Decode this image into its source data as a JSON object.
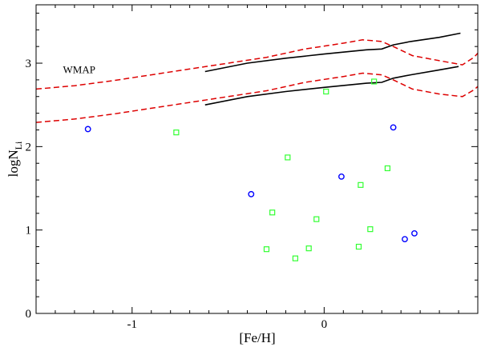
{
  "chart_data": {
    "type": "scatter",
    "title": "",
    "xlabel": "[Fe/H]",
    "ylabel": "logN",
    "ylabel_subscript": "Li",
    "xlim": [
      -1.5,
      0.8
    ],
    "ylim": [
      0,
      3.7
    ],
    "xticks": [
      -1,
      0
    ],
    "xtick_labels": [
      "-1",
      "0"
    ],
    "yticks": [
      0,
      1,
      2,
      3
    ],
    "ytick_labels": [
      "0",
      "1",
      "2",
      "3"
    ],
    "grid": false,
    "annotations": [
      {
        "text": "WMAP",
        "x": -1.36,
        "y": 2.88
      }
    ],
    "series": [
      {
        "name": "circles",
        "marker": "circle",
        "color": "#0000ff",
        "points": [
          [
            -1.23,
            2.21
          ],
          [
            -0.38,
            1.43
          ],
          [
            0.09,
            1.64
          ],
          [
            0.36,
            2.23
          ],
          [
            0.42,
            0.89
          ],
          [
            0.47,
            0.96
          ]
        ]
      },
      {
        "name": "squares",
        "marker": "square",
        "color": "#33ff33",
        "points": [
          [
            -0.77,
            2.17
          ],
          [
            -0.19,
            1.87
          ],
          [
            -0.27,
            1.21
          ],
          [
            -0.3,
            0.77
          ],
          [
            -0.15,
            0.66
          ],
          [
            -0.08,
            0.78
          ],
          [
            -0.04,
            1.13
          ],
          [
            0.01,
            2.66
          ],
          [
            0.18,
            0.8
          ],
          [
            0.19,
            1.54
          ],
          [
            0.24,
            1.01
          ],
          [
            0.26,
            2.78
          ],
          [
            0.33,
            1.74
          ]
        ]
      },
      {
        "name": "upper-black",
        "style": "solid",
        "color": "#000000",
        "points": [
          [
            -0.62,
            2.9
          ],
          [
            -0.4,
            3.0
          ],
          [
            -0.2,
            3.06
          ],
          [
            0.0,
            3.11
          ],
          [
            0.22,
            3.16
          ],
          [
            0.3,
            3.17
          ],
          [
            0.36,
            3.22
          ],
          [
            0.45,
            3.26
          ],
          [
            0.6,
            3.31
          ],
          [
            0.71,
            3.36
          ]
        ]
      },
      {
        "name": "lower-black",
        "style": "solid",
        "color": "#000000",
        "points": [
          [
            -0.62,
            2.5
          ],
          [
            -0.4,
            2.6
          ],
          [
            -0.2,
            2.66
          ],
          [
            0.0,
            2.71
          ],
          [
            0.22,
            2.76
          ],
          [
            0.3,
            2.77
          ],
          [
            0.36,
            2.82
          ],
          [
            0.45,
            2.86
          ],
          [
            0.6,
            2.92
          ],
          [
            0.7,
            2.96
          ]
        ]
      },
      {
        "name": "upper-red-dashed",
        "style": "dashed",
        "color": "#dd0000",
        "points": [
          [
            -1.5,
            2.69
          ],
          [
            -1.3,
            2.73
          ],
          [
            -1.1,
            2.79
          ],
          [
            -0.9,
            2.86
          ],
          [
            -0.7,
            2.93
          ],
          [
            -0.5,
            3.0
          ],
          [
            -0.3,
            3.07
          ],
          [
            -0.1,
            3.17
          ],
          [
            0.1,
            3.24
          ],
          [
            0.2,
            3.28
          ],
          [
            0.3,
            3.26
          ],
          [
            0.36,
            3.2
          ],
          [
            0.46,
            3.09
          ],
          [
            0.6,
            3.03
          ],
          [
            0.72,
            2.98
          ],
          [
            0.78,
            3.07
          ],
          [
            0.8,
            3.12
          ]
        ]
      },
      {
        "name": "lower-red-dashed",
        "style": "dashed",
        "color": "#dd0000",
        "points": [
          [
            -1.5,
            2.29
          ],
          [
            -1.3,
            2.33
          ],
          [
            -1.1,
            2.39
          ],
          [
            -0.9,
            2.46
          ],
          [
            -0.7,
            2.53
          ],
          [
            -0.5,
            2.6
          ],
          [
            -0.3,
            2.67
          ],
          [
            -0.1,
            2.77
          ],
          [
            0.1,
            2.84
          ],
          [
            0.2,
            2.88
          ],
          [
            0.3,
            2.86
          ],
          [
            0.36,
            2.8
          ],
          [
            0.46,
            2.69
          ],
          [
            0.6,
            2.63
          ],
          [
            0.72,
            2.6
          ],
          [
            0.78,
            2.68
          ],
          [
            0.8,
            2.72
          ]
        ]
      }
    ]
  }
}
